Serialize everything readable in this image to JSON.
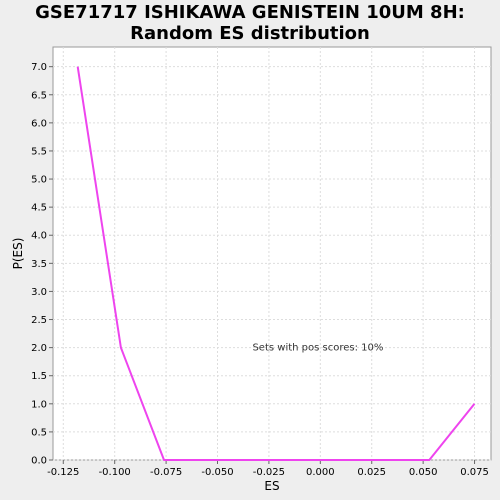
{
  "chart_data": {
    "type": "line",
    "title_lines": [
      "GSE71717 ISHIKAWA GENISTEIN 10UM 8H:",
      "Random ES distribution"
    ],
    "xlabel": "ES",
    "ylabel": "P(ES)",
    "xlim": [
      -0.13,
      0.083
    ],
    "ylim": [
      0,
      7.35
    ],
    "xticks": [
      -0.125,
      -0.1,
      -0.075,
      -0.05,
      -0.025,
      0.0,
      0.025,
      0.05,
      0.075
    ],
    "xtick_labels": [
      "-0.125",
      "-0.100",
      "-0.075",
      "-0.050",
      "-0.025",
      "0.000",
      "0.025",
      "0.050",
      "0.075"
    ],
    "yticks": [
      0,
      0.5,
      1,
      1.5,
      2,
      2.5,
      3,
      3.5,
      4,
      4.5,
      5,
      5.5,
      6,
      6.5,
      7
    ],
    "ytick_labels": [
      "0.0",
      "0.5",
      "1.0",
      "1.5",
      "2.0",
      "2.5",
      "3.0",
      "3.5",
      "4.0",
      "4.5",
      "5.0",
      "5.5",
      "6.0",
      "6.5",
      "7.0"
    ],
    "grid": true,
    "series": [
      {
        "color": "#ee44ee",
        "x": [
          -0.118,
          -0.097,
          -0.076,
          0.053,
          0.075
        ],
        "y": [
          7.0,
          2.0,
          0.0,
          0.0,
          1.0
        ]
      }
    ],
    "annotation": {
      "text": "Sets with pos scores: 10%",
      "x": -0.033,
      "y": 1.95
    }
  },
  "colors": {
    "background": "#eeeeee",
    "plot_background": "#ffffff",
    "grid": "#dddddd",
    "series": "#ee44ee"
  }
}
